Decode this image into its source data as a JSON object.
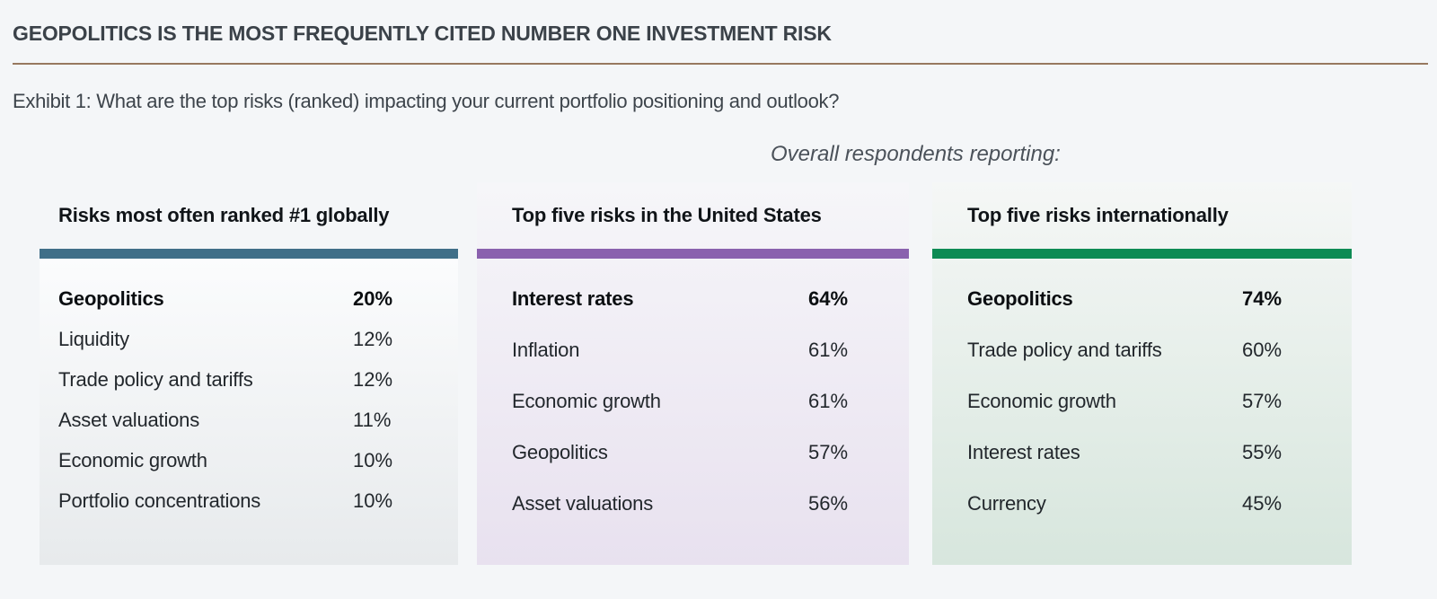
{
  "page": {
    "title": "GEOPOLITICS IS THE MOST FREQUENTLY CITED NUMBER ONE INVESTMENT RISK",
    "divider_color": "#97785f",
    "background_color": "#f4f6f8",
    "exhibit_caption": "Exhibit 1: What are the top risks (ranked) impacting your current portfolio positioning and outlook?",
    "annotation": "Overall respondents reporting:"
  },
  "columns": [
    {
      "heading": "Risks most often ranked #1 globally",
      "accent_color": "#406f88",
      "panel_tint": "#e7eaec",
      "rows": [
        {
          "label": "Geopolitics",
          "value": "20%",
          "emphasis": true
        },
        {
          "label": "Liquidity",
          "value": "12%",
          "emphasis": false
        },
        {
          "label": "Trade policy and tariffs",
          "value": "12%",
          "emphasis": false
        },
        {
          "label": "Asset valuations",
          "value": "11%",
          "emphasis": false
        },
        {
          "label": "Economic growth",
          "value": "10%",
          "emphasis": false
        },
        {
          "label": "Portfolio concentrations",
          "value": "10%",
          "emphasis": false
        }
      ]
    },
    {
      "heading": "Top five risks in the United States",
      "accent_color": "#8a61ae",
      "panel_tint": "#e8e1ef",
      "rows": [
        {
          "label": "Interest rates",
          "value": "64%",
          "emphasis": true
        },
        {
          "label": "Inflation",
          "value": "61%",
          "emphasis": false
        },
        {
          "label": "Economic growth",
          "value": "61%",
          "emphasis": false
        },
        {
          "label": "Geopolitics",
          "value": "57%",
          "emphasis": false
        },
        {
          "label": "Asset valuations",
          "value": "56%",
          "emphasis": false
        }
      ]
    },
    {
      "heading": "Top five risks internationally",
      "accent_color": "#0e8b54",
      "panel_tint": "#d7e6dd",
      "rows": [
        {
          "label": "Geopolitics",
          "value": "74%",
          "emphasis": true
        },
        {
          "label": "Trade policy and tariffs",
          "value": "60%",
          "emphasis": false
        },
        {
          "label": "Economic growth",
          "value": "57%",
          "emphasis": false
        },
        {
          "label": "Interest rates",
          "value": "55%",
          "emphasis": false
        },
        {
          "label": "Currency",
          "value": "45%",
          "emphasis": false
        }
      ]
    }
  ],
  "chart_data": [
    {
      "type": "table",
      "title": "Risks most often ranked #1 globally",
      "unit": "%",
      "accent_color": "#406f88",
      "rows": [
        [
          "Geopolitics",
          20
        ],
        [
          "Liquidity",
          12
        ],
        [
          "Trade policy and tariffs",
          12
        ],
        [
          "Asset valuations",
          11
        ],
        [
          "Economic growth",
          10
        ],
        [
          "Portfolio concentrations",
          10
        ]
      ]
    },
    {
      "type": "table",
      "title": "Top five risks in the United States",
      "unit": "%",
      "accent_color": "#8a61ae",
      "rows": [
        [
          "Interest rates",
          64
        ],
        [
          "Inflation",
          61
        ],
        [
          "Economic growth",
          61
        ],
        [
          "Geopolitics",
          57
        ],
        [
          "Asset valuations",
          56
        ]
      ]
    },
    {
      "type": "table",
      "title": "Top five risks internationally",
      "unit": "%",
      "accent_color": "#0e8b54",
      "rows": [
        [
          "Geopolitics",
          74
        ],
        [
          "Trade policy and tariffs",
          60
        ],
        [
          "Economic growth",
          57
        ],
        [
          "Interest rates",
          55
        ],
        [
          "Currency",
          45
        ]
      ]
    }
  ]
}
